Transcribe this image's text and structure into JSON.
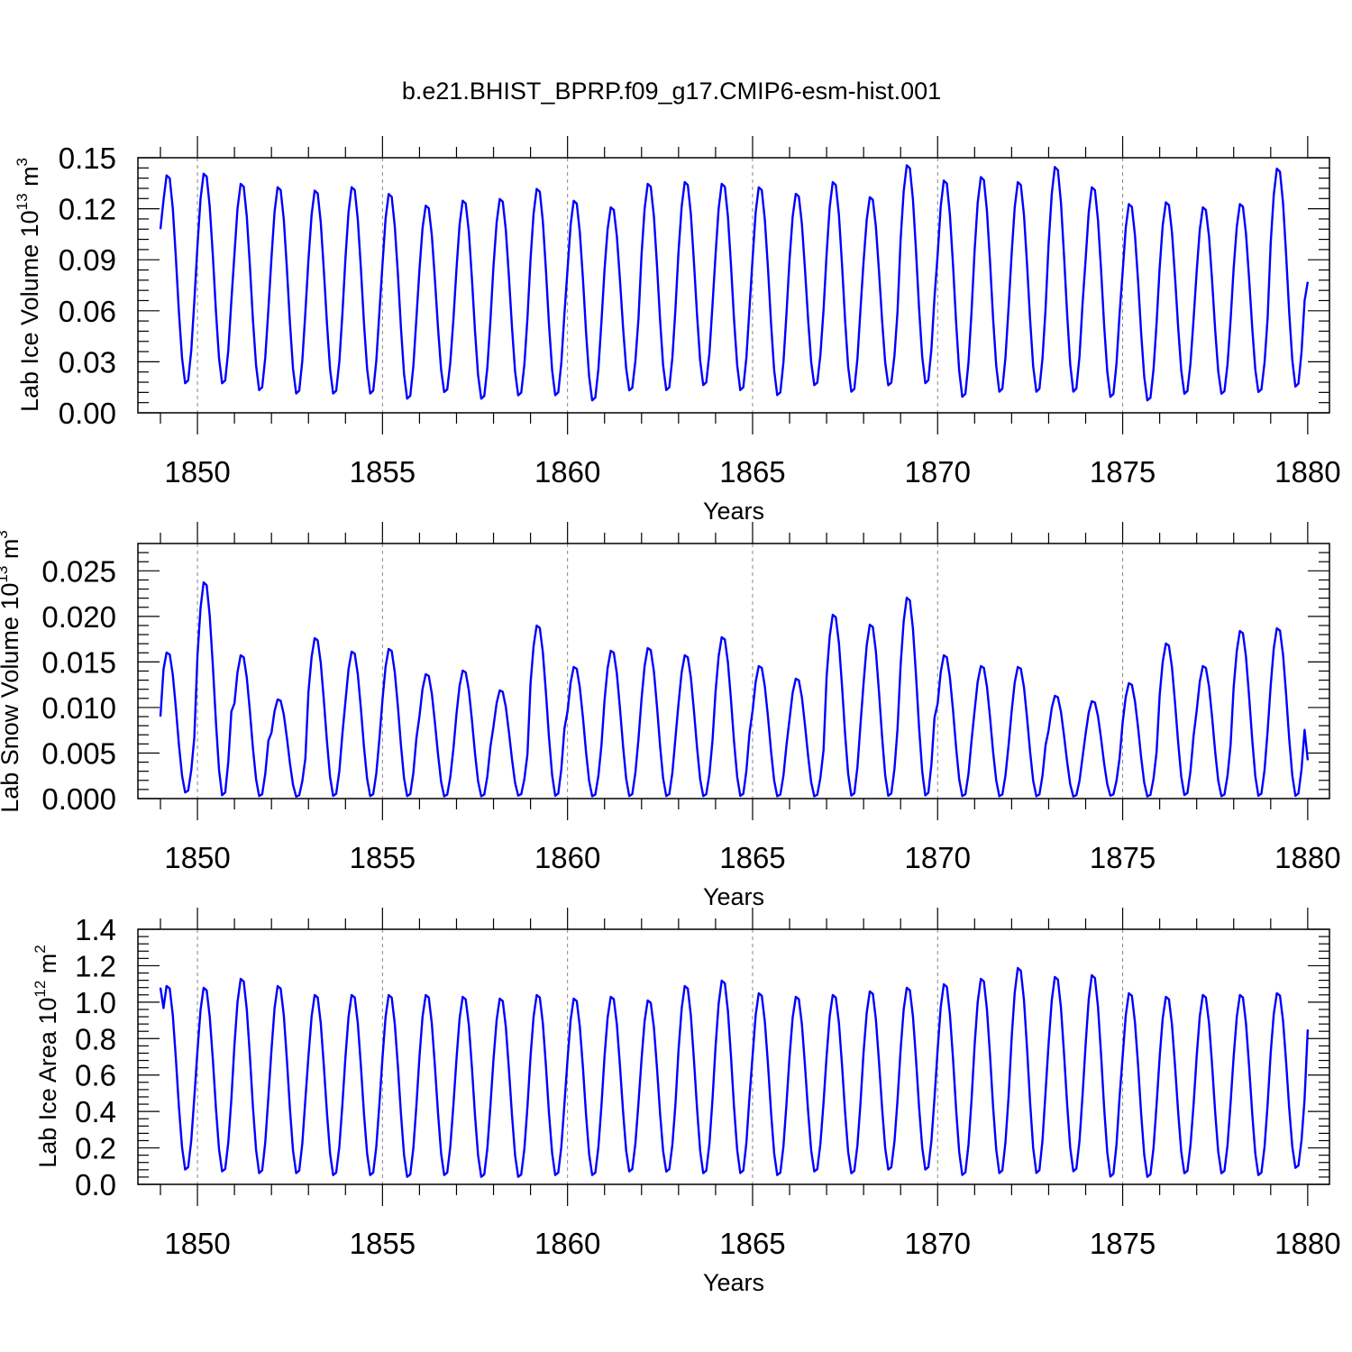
{
  "figure": {
    "title": "b.e21.BHIST_BPRP.f09_g17.CMIP6-esm-hist.001"
  },
  "chart_data": [
    {
      "type": "line",
      "ylabel": {
        "prefix": "Lab Ice Volume 10",
        "exponent": "13",
        "suffix": " m",
        "unit_exponent": "3"
      },
      "xlabel": "Years",
      "xlim": [
        1849,
        1880
      ],
      "ylim": [
        0.0,
        0.15
      ],
      "xticks": [
        1850,
        1855,
        1860,
        1865,
        1870,
        1875,
        1880
      ],
      "yticks": [
        "0.00",
        "0.03",
        "0.06",
        "0.09",
        "0.12",
        "0.15"
      ],
      "grid": "dashed vertical at major x ticks",
      "series_color": "#0000ff",
      "peaks": [
        0.141,
        0.142,
        0.136,
        0.134,
        0.132,
        0.134,
        0.13,
        0.123,
        0.126,
        0.127,
        0.133,
        0.126,
        0.122,
        0.136,
        0.137,
        0.136,
        0.134,
        0.13,
        0.137,
        0.128,
        0.147,
        0.138,
        0.14,
        0.137,
        0.146,
        0.134,
        0.124,
        0.125,
        0.122,
        0.124,
        0.145
      ],
      "troughs": [
        0.016,
        0.016,
        0.012,
        0.01,
        0.01,
        0.01,
        0.007,
        0.011,
        0.007,
        0.009,
        0.009,
        0.006,
        0.012,
        0.012,
        0.015,
        0.012,
        0.009,
        0.015,
        0.011,
        0.015,
        0.016,
        0.008,
        0.011,
        0.011,
        0.011,
        0.008,
        0.006,
        0.01,
        0.01,
        0.011,
        0.014
      ],
      "start_value": 0.108,
      "end_value": 0.077
    },
    {
      "type": "line",
      "ylabel": {
        "prefix": "Lab Snow Volume 10",
        "exponent": "13",
        "suffix": " m",
        "unit_exponent": "3"
      },
      "xlabel": "Years",
      "xlim": [
        1849,
        1880
      ],
      "ylim": [
        0.0,
        0.028
      ],
      "xticks": [
        1850,
        1855,
        1860,
        1865,
        1870,
        1875,
        1880
      ],
      "yticks": [
        "0.000",
        "0.005",
        "0.010",
        "0.015",
        "0.020",
        "0.025"
      ],
      "grid": "dashed vertical at major x ticks",
      "series_color": "#0000ff",
      "peaks": [
        0.0162,
        0.024,
        0.0159,
        0.011,
        0.0178,
        0.0163,
        0.0166,
        0.0138,
        0.0142,
        0.012,
        0.0192,
        0.0146,
        0.0164,
        0.0167,
        0.0159,
        0.0179,
        0.0147,
        0.0133,
        0.0204,
        0.0193,
        0.0223,
        0.0159,
        0.0147,
        0.0146,
        0.0114,
        0.0108,
        0.0128,
        0.0172,
        0.0147,
        0.0186,
        0.0189
      ],
      "troughs": [
        0.0005,
        0.0001,
        0.0001,
        0.0001,
        0.0001,
        0.0001,
        0.0001,
        0.0001,
        0.0001,
        0.0002,
        0.0001,
        0.0001,
        0.0001,
        0.0001,
        0.0001,
        0.0001,
        0.0001,
        0.0001,
        0.0001,
        0.0001,
        0.0001,
        0.0001,
        0.0001,
        0.0001,
        0.0001,
        0.0002,
        0.0001,
        0.0002,
        0.0001,
        0.0001,
        0.0001
      ],
      "start_value": 0.009,
      "end_value": 0.0042
    },
    {
      "type": "line",
      "ylabel": {
        "prefix": "Lab Ice Area 10",
        "exponent": "12",
        "suffix": " m",
        "unit_exponent": "2"
      },
      "xlabel": "Years",
      "xlim": [
        1849,
        1880
      ],
      "ylim": [
        0.0,
        1.4
      ],
      "xticks": [
        1850,
        1855,
        1860,
        1865,
        1870,
        1875,
        1880
      ],
      "yticks": [
        "0.0",
        "0.2",
        "0.4",
        "0.6",
        "0.8",
        "1.0",
        "1.2",
        "1.4"
      ],
      "grid": "dashed vertical at major x ticks",
      "series_color": "#0000ff",
      "peaks": [
        1.1,
        1.09,
        1.14,
        1.1,
        1.05,
        1.05,
        1.05,
        1.05,
        1.04,
        1.03,
        1.05,
        1.03,
        1.04,
        1.02,
        1.1,
        1.13,
        1.06,
        1.04,
        1.05,
        1.07,
        1.09,
        1.11,
        1.14,
        1.2,
        1.15,
        1.16,
        1.06,
        1.04,
        1.05,
        1.05,
        1.06
      ],
      "troughs": [
        0.07,
        0.06,
        0.05,
        0.05,
        0.04,
        0.04,
        0.03,
        0.04,
        0.03,
        0.03,
        0.04,
        0.04,
        0.06,
        0.06,
        0.05,
        0.05,
        0.04,
        0.06,
        0.05,
        0.07,
        0.07,
        0.04,
        0.05,
        0.05,
        0.06,
        0.03,
        0.03,
        0.05,
        0.05,
        0.04,
        0.08
      ],
      "start_value": 1.08,
      "end_value": 0.85
    }
  ]
}
